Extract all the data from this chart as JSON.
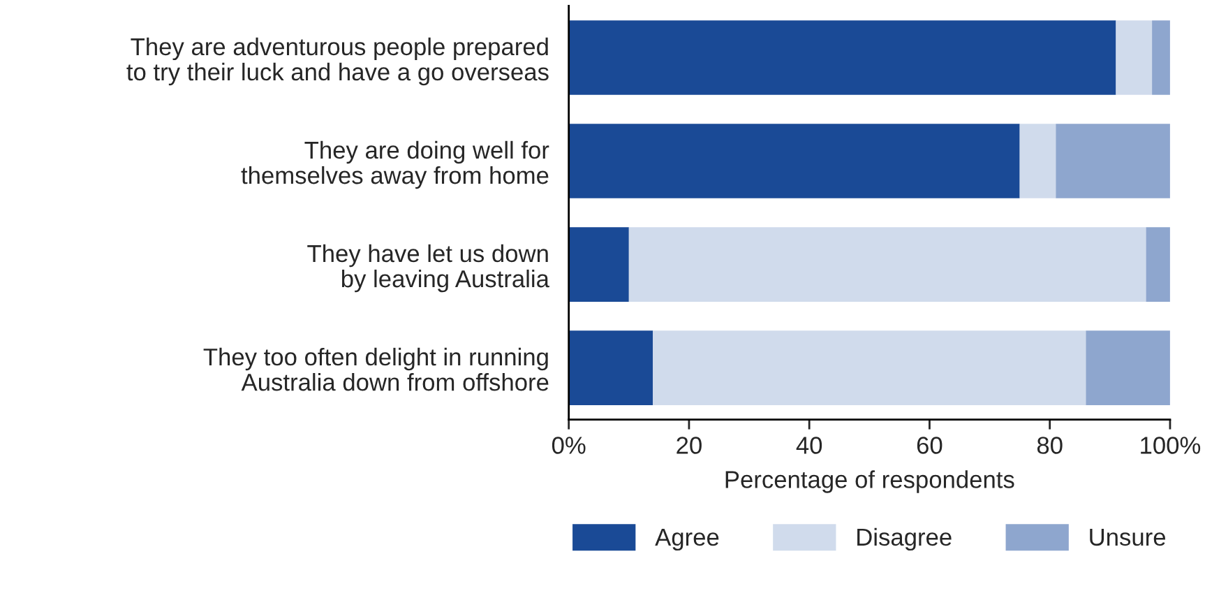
{
  "chart_data": {
    "type": "bar",
    "orientation": "horizontal",
    "stacked": true,
    "categories": [
      "They are adventurous people prepared\nto try their luck and have a go overseas",
      "They are doing well for\nthemselves away from home",
      "They have let us down\nby leaving Australia",
      "They too often delight in running\nAustralia down from offshore"
    ],
    "series": [
      {
        "name": "Agree",
        "color": "#1a4a96",
        "values": [
          91,
          75,
          10,
          14
        ]
      },
      {
        "name": "Disagree",
        "color": "#d0dbec",
        "values": [
          6,
          6,
          86,
          72
        ]
      },
      {
        "name": "Unsure",
        "color": "#8ea6ce",
        "values": [
          3,
          19,
          4,
          14
        ]
      }
    ],
    "xlim": [
      0,
      100
    ],
    "xticks": [
      {
        "value": 0,
        "label": "0%"
      },
      20,
      40,
      60,
      80,
      {
        "value": 100,
        "label": "100%"
      }
    ],
    "xlabel": "Percentage of respondents",
    "legend": "bottom",
    "grid": false
  }
}
